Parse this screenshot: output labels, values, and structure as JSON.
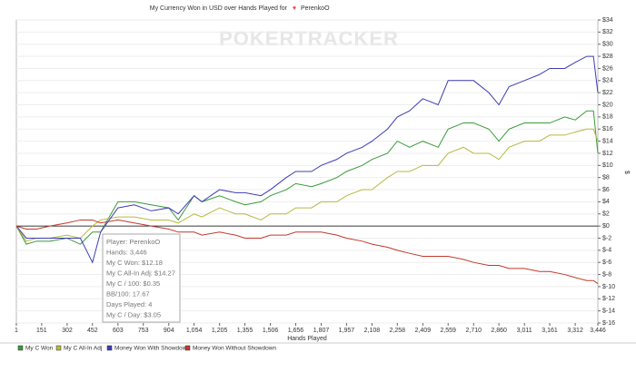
{
  "chart_data": {
    "type": "line",
    "title": "My Currency Won in USD over Hands Played for",
    "title_player": "PerenkoO",
    "watermark": "POKERTRACKER",
    "x_label": "Hands Played",
    "y_label": "$",
    "x": [
      1,
      60,
      120,
      200,
      300,
      380,
      452,
      500,
      603,
      700,
      800,
      904,
      960,
      1054,
      1100,
      1205,
      1300,
      1355,
      1450,
      1506,
      1600,
      1656,
      1750,
      1807,
      1900,
      1957,
      2050,
      2108,
      2200,
      2258,
      2330,
      2409,
      2500,
      2559,
      2650,
      2710,
      2800,
      2860,
      2920,
      3011,
      3100,
      3161,
      3250,
      3312,
      3380,
      3420,
      3446
    ],
    "series": [
      {
        "name": "My C Won",
        "color": "#3a9a3a",
        "values": [
          0,
          -3,
          -2.5,
          -2.5,
          -2,
          -3,
          -1,
          -1,
          4,
          4,
          3.5,
          3,
          1,
          5,
          4,
          5,
          4,
          3.5,
          4,
          5,
          6,
          7,
          6.5,
          7,
          8,
          9,
          10,
          11,
          12,
          14,
          13,
          14,
          13,
          16,
          17,
          17,
          16,
          14,
          16,
          17,
          17,
          17,
          18,
          17.5,
          19,
          19,
          12
        ]
      },
      {
        "name": "My C All-In Adj",
        "color": "#b8b840",
        "values": [
          0,
          -2.5,
          -2,
          -2,
          -1.5,
          -2,
          0,
          1,
          1.5,
          1.5,
          1,
          1,
          0.5,
          2,
          1.5,
          3,
          2,
          2,
          1,
          2,
          2,
          3,
          3,
          4,
          4,
          5,
          6,
          6,
          8,
          9,
          9,
          10,
          10,
          12,
          13,
          12,
          12,
          11,
          13,
          14,
          14,
          15,
          15,
          15.5,
          16,
          16,
          14
        ]
      },
      {
        "name": "Money Won With Showdown",
        "color": "#3c3cb4",
        "values": [
          0,
          -2,
          -2,
          -2,
          -2,
          -2,
          -6,
          -1,
          3,
          3.5,
          2.5,
          3,
          2,
          5,
          4,
          6,
          5.5,
          5.5,
          5,
          6,
          8,
          9,
          9,
          10,
          11,
          12,
          13,
          14,
          16,
          18,
          19,
          21,
          20,
          24,
          24,
          24,
          22,
          20,
          23,
          24,
          25,
          26,
          26,
          27,
          28,
          28,
          22
        ]
      },
      {
        "name": "Money Won Without Showdown",
        "color": "#c0392b",
        "values": [
          0,
          -0.5,
          -0.5,
          0,
          0.5,
          1,
          1,
          0.5,
          1,
          0.5,
          0,
          -0.5,
          -1,
          -1,
          -1.5,
          -1,
          -1.5,
          -2,
          -2,
          -1.5,
          -1.5,
          -1,
          -1,
          -1,
          -1.5,
          -2,
          -2.5,
          -3,
          -3.5,
          -4,
          -4.5,
          -5,
          -5,
          -5,
          -5.5,
          -6,
          -6.5,
          -6.5,
          -7,
          -7,
          -7.5,
          -7.5,
          -8,
          -8.5,
          -9,
          -9,
          -9.5
        ]
      }
    ],
    "xlim": [
      1,
      3446
    ],
    "xticks": [
      1,
      151,
      302,
      452,
      603,
      753,
      904,
      {
        "value": 1054,
        "label": "1,054"
      },
      {
        "value": 1205,
        "label": "1,205"
      },
      {
        "value": 1355,
        "label": "1,355"
      },
      {
        "value": 1506,
        "label": "1,506"
      },
      {
        "value": 1656,
        "label": "1,656"
      },
      {
        "value": 1807,
        "label": "1,807"
      },
      {
        "value": 1957,
        "label": "1,957"
      },
      {
        "value": 2108,
        "label": "2,108"
      },
      {
        "value": 2258,
        "label": "2,258"
      },
      {
        "value": 2409,
        "label": "2,409"
      },
      {
        "value": 2559,
        "label": "2,559"
      },
      {
        "value": 2710,
        "label": "2,710"
      },
      {
        "value": 2860,
        "label": "2,860"
      },
      {
        "value": 3011,
        "label": "3,011"
      },
      {
        "value": 3161,
        "label": "3,161"
      },
      {
        "value": 3312,
        "label": "3,312"
      },
      {
        "value": 3446,
        "label": "3,446"
      }
    ],
    "ylim": [
      -16,
      34
    ],
    "yticks": [
      {
        "value": 34,
        "label": "$34"
      },
      {
        "value": 32,
        "label": "$32"
      },
      {
        "value": 30,
        "label": "$30"
      },
      {
        "value": 28,
        "label": "$28"
      },
      {
        "value": 26,
        "label": "$26"
      },
      {
        "value": 24,
        "label": "$24"
      },
      {
        "value": 22,
        "label": "$22"
      },
      {
        "value": 20,
        "label": "$20"
      },
      {
        "value": 18,
        "label": "$18"
      },
      {
        "value": 16,
        "label": "$16"
      },
      {
        "value": 14,
        "label": "$14"
      },
      {
        "value": 12,
        "label": "$12"
      },
      {
        "value": 10,
        "label": "$10"
      },
      {
        "value": 8,
        "label": "$8"
      },
      {
        "value": 6,
        "label": "$6"
      },
      {
        "value": 4,
        "label": "$4"
      },
      {
        "value": 2,
        "label": "$2"
      },
      {
        "value": 0,
        "label": "$0"
      },
      {
        "value": -2,
        "label": "$-2"
      },
      {
        "value": -4,
        "label": "$-4"
      },
      {
        "value": -6,
        "label": "$-6"
      },
      {
        "value": -8,
        "label": "$-8"
      },
      {
        "value": -10,
        "label": "$-10"
      },
      {
        "value": -12,
        "label": "$-12"
      },
      {
        "value": -14,
        "label": "$-14"
      },
      {
        "value": -16,
        "label": "$-16"
      }
    ],
    "grid": true,
    "tooltip": [
      "Player: PerenkoO",
      "Hands: 3,446",
      "My C Won: $12.18",
      "My C All-In Adj: $14.27",
      "My C / 100: $0.35",
      "BB/100: 17.67",
      "Days Played: 4",
      "My C / Day: $3.05"
    ]
  }
}
